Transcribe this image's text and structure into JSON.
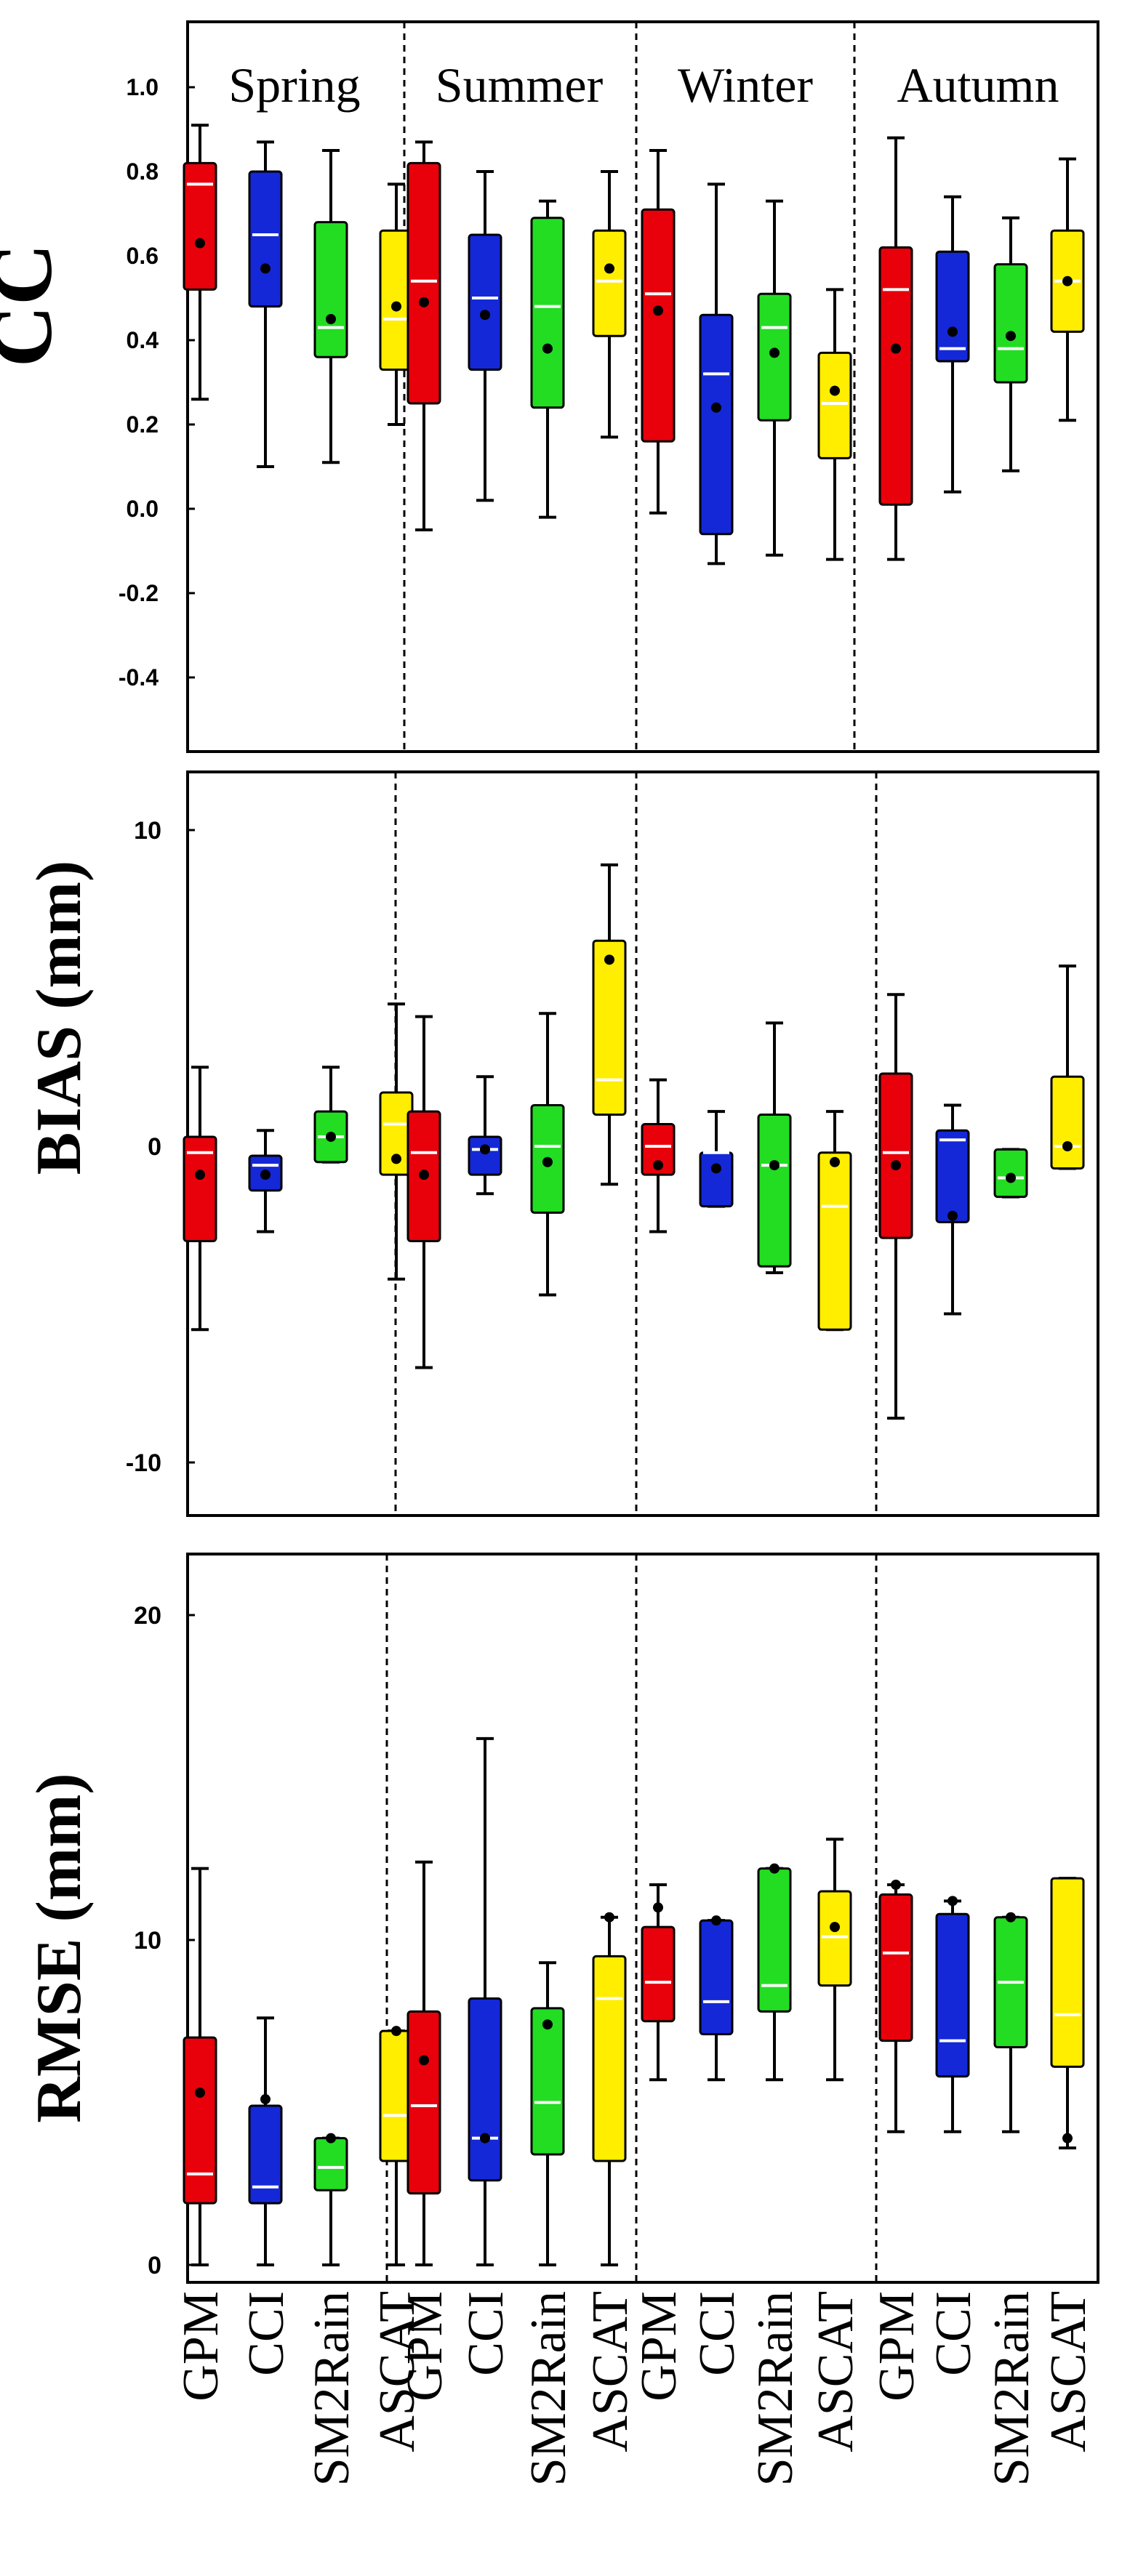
{
  "colors": {
    "GPM": "#e8000b",
    "CCI": "#1428d8",
    "SM2Rain": "#22dd22",
    "ASCAT": "#ffee00",
    "ylabel_cc": "#000000",
    "ylabel_bias": "#3a2008",
    "ylabel_rmse": "#0e2434"
  },
  "products": [
    "GPM",
    "CCI",
    "SM2Rain",
    "ASCAT"
  ],
  "seasons": [
    "Spring",
    "Summer",
    "Winter",
    "Autumn"
  ],
  "chart_data": [
    {
      "type": "box",
      "ylabel": "CC",
      "ylim": [
        -0.5,
        1.2
      ],
      "yticks": [
        "1.0",
        "0.8",
        "0.6",
        "0.4",
        "0.2",
        "0.0",
        "-0.2",
        "-0.4"
      ],
      "yticks_values": [
        1.0,
        0.8,
        0.6,
        0.4,
        0.2,
        0.0,
        -0.2,
        -0.4
      ],
      "season_labels_visible": true,
      "boxes": [
        [
          {
            "wl": 0.26,
            "q1": 0.52,
            "med": 0.77,
            "q3": 0.82,
            "wh": 0.91,
            "mean": 0.63
          },
          {
            "wl": 0.1,
            "q1": 0.48,
            "med": 0.65,
            "q3": 0.8,
            "wh": 0.87,
            "mean": 0.57
          },
          {
            "wl": 0.11,
            "q1": 0.36,
            "med": 0.43,
            "q3": 0.68,
            "wh": 0.85,
            "mean": 0.45
          },
          {
            "wl": 0.2,
            "q1": 0.33,
            "med": 0.45,
            "q3": 0.66,
            "wh": 0.77,
            "mean": 0.48
          }
        ],
        [
          {
            "wl": -0.05,
            "q1": 0.25,
            "med": 0.54,
            "q3": 0.82,
            "wh": 0.87,
            "mean": 0.49
          },
          {
            "wl": 0.02,
            "q1": 0.33,
            "med": 0.5,
            "q3": 0.65,
            "wh": 0.8,
            "mean": 0.46
          },
          {
            "wl": -0.02,
            "q1": 0.24,
            "med": 0.48,
            "q3": 0.69,
            "wh": 0.73,
            "mean": 0.38
          },
          {
            "wl": 0.17,
            "q1": 0.41,
            "med": 0.54,
            "q3": 0.66,
            "wh": 0.8,
            "mean": 0.57
          }
        ],
        [
          {
            "wl": -0.01,
            "q1": 0.16,
            "med": 0.51,
            "q3": 0.71,
            "wh": 0.85,
            "mean": 0.47
          },
          {
            "wl": -0.13,
            "q1": -0.06,
            "med": 0.32,
            "q3": 0.46,
            "wh": 0.77,
            "mean": 0.24
          },
          {
            "wl": -0.11,
            "q1": 0.21,
            "med": 0.43,
            "q3": 0.51,
            "wh": 0.73,
            "mean": 0.37
          },
          {
            "wl": -0.12,
            "q1": 0.12,
            "med": 0.25,
            "q3": 0.37,
            "wh": 0.52,
            "mean": 0.28
          }
        ],
        [
          {
            "wl": -0.12,
            "q1": 0.01,
            "med": 0.52,
            "q3": 0.62,
            "wh": 0.88,
            "mean": 0.38
          },
          {
            "wl": 0.04,
            "q1": 0.35,
            "med": 0.38,
            "q3": 0.61,
            "wh": 0.74,
            "mean": 0.42
          },
          {
            "wl": 0.09,
            "q1": 0.3,
            "med": 0.38,
            "q3": 0.58,
            "wh": 0.69,
            "mean": 0.41
          },
          {
            "wl": 0.21,
            "q1": 0.42,
            "med": 0.54,
            "q3": 0.66,
            "wh": 0.83,
            "mean": 0.54
          }
        ]
      ]
    },
    {
      "type": "box",
      "ylabel": "BIAS (mm)",
      "ylim": [
        -12,
        12
      ],
      "yticks": [
        "10",
        "0",
        "-10"
      ],
      "yticks_values": [
        10,
        0,
        -10
      ],
      "boxes": [
        [
          {
            "wl": -5.8,
            "q1": -3.0,
            "med": -0.2,
            "q3": 0.3,
            "wh": 2.5,
            "mean": -0.9
          },
          {
            "wl": -2.7,
            "q1": -1.4,
            "med": -0.6,
            "q3": -0.3,
            "wh": 0.5,
            "mean": -0.9
          },
          {
            "wl": -0.5,
            "q1": -0.5,
            "med": 0.3,
            "q3": 1.1,
            "wh": 2.5,
            "mean": 0.3
          },
          {
            "wl": -4.2,
            "q1": -0.9,
            "med": 0.7,
            "q3": 1.7,
            "wh": 4.5,
            "mean": -0.4
          }
        ],
        [
          {
            "wl": -7.0,
            "q1": -3.0,
            "med": -0.2,
            "q3": 1.1,
            "wh": 4.1,
            "mean": -0.9
          },
          {
            "wl": -1.5,
            "q1": -0.9,
            "med": -0.1,
            "q3": 0.3,
            "wh": 2.2,
            "mean": -0.1
          },
          {
            "wl": -4.7,
            "q1": -2.1,
            "med": 0.0,
            "q3": 1.3,
            "wh": 4.2,
            "mean": -0.5
          },
          {
            "wl": -1.2,
            "q1": 1.0,
            "med": 2.1,
            "q3": 6.5,
            "wh": 8.9,
            "mean": 5.9
          }
        ],
        [
          {
            "wl": -2.7,
            "q1": -0.9,
            "med": 0.0,
            "q3": 0.7,
            "wh": 2.1,
            "mean": -0.6
          },
          {
            "wl": -1.9,
            "q1": -1.9,
            "med": -0.2,
            "q3": -0.2,
            "wh": 1.1,
            "mean": -0.7
          },
          {
            "wl": -4.0,
            "q1": -3.8,
            "med": -0.6,
            "q3": 1.0,
            "wh": 3.9,
            "mean": -0.6
          },
          {
            "wl": -5.8,
            "q1": -5.8,
            "med": -1.9,
            "q3": -0.2,
            "wh": 1.1,
            "mean": -0.5
          }
        ],
        [
          {
            "wl": -8.6,
            "q1": -2.9,
            "med": -0.2,
            "q3": 2.3,
            "wh": 4.8,
            "mean": -0.6
          },
          {
            "wl": -5.3,
            "q1": -2.4,
            "med": 0.2,
            "q3": 0.5,
            "wh": 1.3,
            "mean": -2.2
          },
          {
            "wl": -1.6,
            "q1": -1.6,
            "med": -1.0,
            "q3": -0.1,
            "wh": -0.1,
            "mean": -1.0
          },
          {
            "wl": -0.7,
            "q1": -0.7,
            "med": 0.0,
            "q3": 2.2,
            "wh": 5.7,
            "mean": 0.0
          }
        ]
      ]
    },
    {
      "type": "box",
      "ylabel": "RMSE (mm)",
      "ylim": [
        0,
        20
      ],
      "yticks": [
        "20",
        "10",
        "0"
      ],
      "yticks_values": [
        20,
        10,
        0
      ],
      "boxes": [
        [
          {
            "wl": 0.0,
            "q1": 1.9,
            "med": 2.8,
            "q3": 7.0,
            "wh": 12.2,
            "mean": 5.3
          },
          {
            "wl": 0.0,
            "q1": 1.9,
            "med": 2.4,
            "q3": 4.9,
            "wh": 7.6,
            "mean": 5.1
          },
          {
            "wl": 0.0,
            "q1": 2.3,
            "med": 3.0,
            "q3": 3.9,
            "wh": 3.9,
            "mean": 3.9
          },
          {
            "wl": 0.0,
            "q1": 3.2,
            "med": 4.6,
            "q3": 7.2,
            "wh": 7.2,
            "mean": 7.2
          }
        ],
        [
          {
            "wl": 0.0,
            "q1": 2.2,
            "med": 4.9,
            "q3": 7.8,
            "wh": 12.4,
            "mean": 6.3
          },
          {
            "wl": 0.0,
            "q1": 2.6,
            "med": 3.9,
            "q3": 8.2,
            "wh": 16.2,
            "mean": 3.9
          },
          {
            "wl": 0.0,
            "q1": 3.4,
            "med": 5.0,
            "q3": 7.9,
            "wh": 9.3,
            "mean": 7.4
          },
          {
            "wl": 0.0,
            "q1": 3.2,
            "med": 8.2,
            "q3": 9.5,
            "wh": 10.7,
            "mean": 10.7
          }
        ],
        [
          {
            "wl": 5.7,
            "q1": 7.5,
            "med": 8.7,
            "q3": 10.4,
            "wh": 11.7,
            "mean": 11.0
          },
          {
            "wl": 5.7,
            "q1": 7.1,
            "med": 8.1,
            "q3": 10.6,
            "wh": 10.6,
            "mean": 10.6
          },
          {
            "wl": 5.7,
            "q1": 7.8,
            "med": 8.6,
            "q3": 12.2,
            "wh": 12.2,
            "mean": 12.2
          },
          {
            "wl": 5.7,
            "q1": 8.6,
            "med": 10.1,
            "q3": 11.5,
            "wh": 13.1,
            "mean": 10.4
          }
        ],
        [
          {
            "wl": 4.1,
            "q1": 6.9,
            "med": 9.6,
            "q3": 11.4,
            "wh": 11.7,
            "mean": 11.7
          },
          {
            "wl": 4.1,
            "q1": 5.8,
            "med": 6.9,
            "q3": 10.8,
            "wh": 11.2,
            "mean": 11.2
          },
          {
            "wl": 4.1,
            "q1": 6.7,
            "med": 8.7,
            "q3": 10.7,
            "wh": 10.7,
            "mean": 10.7
          },
          {
            "wl": 3.6,
            "q1": 6.1,
            "med": 7.7,
            "q3": 11.9,
            "wh": 11.9,
            "mean": 3.9
          }
        ]
      ]
    }
  ]
}
